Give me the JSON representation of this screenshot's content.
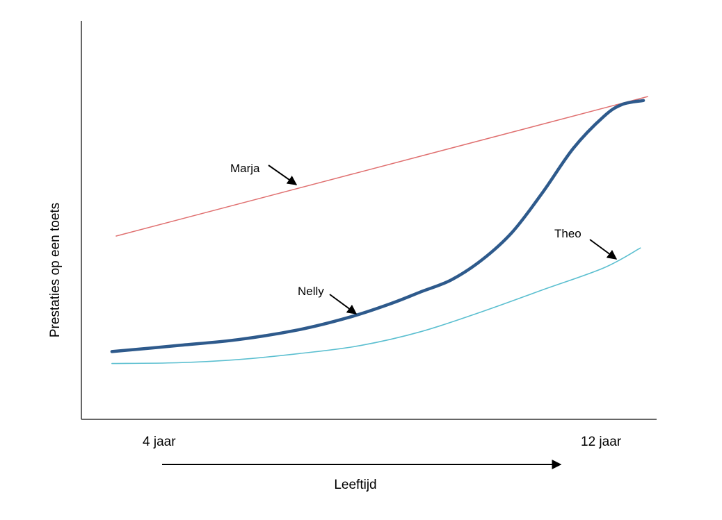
{
  "chart_data": {
    "type": "line",
    "xlabel": "Leeftijd",
    "ylabel": "Prestaties op een toets",
    "x_ticks": [
      "4 jaar",
      "12 jaar"
    ],
    "xlim": [
      3.5,
      12.75
    ],
    "ylim": [
      0,
      100
    ],
    "grid": false,
    "legend": "none",
    "series": [
      {
        "name": "Marja",
        "color": "#e07070",
        "x": [
          4,
          12.72
        ],
        "y": [
          46,
          81
        ]
      },
      {
        "name": "Nelly",
        "color": "#2e5a8c",
        "x": [
          3.93,
          5,
          6,
          7,
          7.8,
          8.5,
          9,
          9.5,
          10,
          10.5,
          11,
          11.5,
          12,
          12.3,
          12.65
        ],
        "y": [
          17,
          18.5,
          20,
          22.5,
          25.5,
          29,
          32,
          35,
          40,
          47,
          57,
          68,
          76,
          79,
          80
        ]
      },
      {
        "name": "Theo",
        "color": "#5bbfd0",
        "x": [
          3.93,
          5,
          6,
          7,
          8,
          9,
          10,
          11,
          12,
          12.6
        ],
        "y": [
          14,
          14.2,
          15,
          16.5,
          18.5,
          22,
          27,
          32.5,
          38,
          43
        ]
      }
    ],
    "annotations": [
      {
        "text": "Marja",
        "points_to": "Marja"
      },
      {
        "text": "Nelly",
        "points_to": "Nelly"
      },
      {
        "text": "Theo",
        "points_to": "Theo"
      }
    ]
  }
}
